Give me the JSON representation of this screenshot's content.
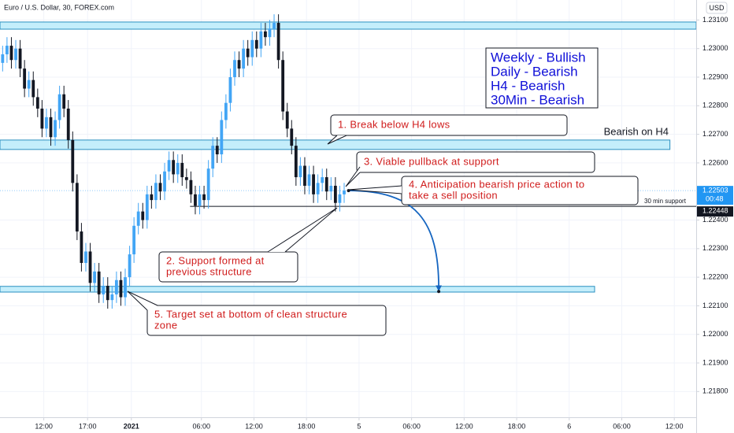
{
  "header": {
    "symbol": "Euro / U.S. Dollar, 30, FOREX.com",
    "currency": "USD"
  },
  "chart_data": {
    "type": "candlestick",
    "up_color": "#42a5f5",
    "down_color": "#131722",
    "zone_color": "#c4eefb",
    "zone_border": "#2a8fc0",
    "arrow_color": "#1565c0",
    "grid": true,
    "xlim": [
      7,
      86.5
    ],
    "xticks": [
      {
        "value": 12,
        "label": "12:00"
      },
      {
        "value": 17,
        "label": "17:00"
      },
      {
        "value": 22,
        "label": "2021"
      },
      {
        "value": 30,
        "label": "06:00"
      },
      {
        "value": 36,
        "label": "12:00"
      },
      {
        "value": 42,
        "label": "18:00"
      },
      {
        "value": 48,
        "label": "5"
      },
      {
        "value": 54,
        "label": "06:00"
      },
      {
        "value": 60,
        "label": "12:00"
      },
      {
        "value": 66,
        "label": "18:00"
      },
      {
        "value": 72,
        "label": "6"
      },
      {
        "value": 78,
        "label": "06:00"
      },
      {
        "value": 84,
        "label": "12:00"
      }
    ],
    "ylim": [
      1.2171,
      1.2317
    ],
    "yticks": [
      {
        "value": 1.231,
        "label": "1.23100"
      },
      {
        "value": 1.23,
        "label": "1.23000"
      },
      {
        "value": 1.229,
        "label": "1.22900"
      },
      {
        "value": 1.228,
        "label": "1.22800"
      },
      {
        "value": 1.227,
        "label": "1.22700"
      },
      {
        "value": 1.226,
        "label": "1.22600"
      },
      {
        "value": 1.224,
        "label": "1.22400"
      },
      {
        "value": 1.223,
        "label": "1.22300"
      },
      {
        "value": 1.222,
        "label": "1.22200"
      },
      {
        "value": 1.221,
        "label": "1.22100"
      },
      {
        "value": 1.22,
        "label": "1.22000"
      },
      {
        "value": 1.219,
        "label": "1.21900"
      },
      {
        "value": 1.218,
        "label": "1.21800"
      }
    ],
    "candles": {
      "x": [
        7.3,
        7.8,
        8.3,
        8.8,
        9.3,
        9.8,
        10.3,
        10.8,
        11.3,
        11.8,
        12.3,
        12.8,
        13.3,
        13.8,
        14.3,
        14.8,
        15.3,
        15.8,
        16.3,
        16.8,
        17.3,
        17.8,
        18.3,
        18.8,
        19.3,
        19.8,
        20.3,
        20.8,
        21.3,
        21.8,
        22.3,
        22.8,
        23.3,
        23.8,
        24.3,
        24.8,
        25.3,
        25.8,
        26.3,
        26.8,
        27.3,
        27.8,
        28.3,
        28.8,
        29.3,
        29.8,
        30.3,
        30.8,
        31.3,
        31.8,
        32.3,
        32.8,
        33.3,
        33.8,
        34.3,
        34.8,
        35.3,
        35.8,
        36.3,
        36.8,
        37.3,
        37.8,
        38.3,
        38.8,
        39.3,
        39.8,
        40.3,
        40.8,
        41.3,
        41.8,
        42.3,
        42.8,
        43.3,
        43.8,
        44.3,
        44.8,
        45.3,
        45.8,
        46.3
      ],
      "open": [
        1.2295,
        1.2298,
        1.2301,
        1.2296,
        1.23,
        1.2293,
        1.2286,
        1.2289,
        1.2283,
        1.2279,
        1.2272,
        1.2276,
        1.2269,
        1.2275,
        1.2284,
        1.2279,
        1.2268,
        1.2253,
        1.2236,
        1.2225,
        1.2229,
        1.2218,
        1.2222,
        1.2214,
        1.2217,
        1.2212,
        1.2214,
        1.2219,
        1.2213,
        1.222,
        1.2228,
        1.2238,
        1.2243,
        1.224,
        1.2249,
        1.2247,
        1.2253,
        1.225,
        1.2257,
        1.2261,
        1.2256,
        1.226,
        1.2255,
        1.2254,
        1.2249,
        1.2245,
        1.2249,
        1.2247,
        1.2258,
        1.2266,
        1.2263,
        1.2275,
        1.2281,
        1.229,
        1.2296,
        1.2293,
        1.23,
        1.2297,
        1.2303,
        1.23,
        1.2306,
        1.2304,
        1.2307,
        1.2309,
        1.2296,
        1.2278,
        1.2272,
        1.2266,
        1.2255,
        1.2259,
        1.2252,
        1.2256,
        1.2249,
        1.2253,
        1.2255,
        1.225,
        1.2252,
        1.2246,
        1.2249
      ],
      "high": [
        1.2301,
        1.2304,
        1.2304,
        1.2303,
        1.2303,
        1.2296,
        1.2292,
        1.2292,
        1.2286,
        1.2282,
        1.2279,
        1.2279,
        1.2278,
        1.2287,
        1.2287,
        1.2282,
        1.2271,
        1.2256,
        1.2239,
        1.2232,
        1.2232,
        1.2225,
        1.2225,
        1.222,
        1.222,
        1.2217,
        1.2222,
        1.2222,
        1.2223,
        1.2231,
        1.2241,
        1.2246,
        1.2246,
        1.2252,
        1.2252,
        1.2256,
        1.2256,
        1.226,
        1.2264,
        1.2264,
        1.2263,
        1.2263,
        1.2258,
        1.2257,
        1.2252,
        1.2252,
        1.2252,
        1.2261,
        1.2269,
        1.2269,
        1.2278,
        1.2284,
        1.2293,
        1.2299,
        1.2299,
        1.2303,
        1.2303,
        1.2306,
        1.2306,
        1.2309,
        1.2309,
        1.231,
        1.2312,
        1.2312,
        1.2299,
        1.2281,
        1.2275,
        1.2269,
        1.2262,
        1.2262,
        1.2259,
        1.2259,
        1.2256,
        1.2258,
        1.2258,
        1.2255,
        1.2255,
        1.2252,
        1.2253
      ],
      "low": [
        1.2292,
        1.2295,
        1.2293,
        1.2293,
        1.229,
        1.2283,
        1.2283,
        1.228,
        1.2276,
        1.2269,
        1.2269,
        1.2266,
        1.2266,
        1.2272,
        1.2276,
        1.2265,
        1.225,
        1.2233,
        1.2222,
        1.2222,
        1.2215,
        1.2215,
        1.2211,
        1.2211,
        1.2209,
        1.2209,
        1.2211,
        1.221,
        1.221,
        1.2217,
        1.2225,
        1.2235,
        1.2237,
        1.2237,
        1.2244,
        1.2244,
        1.2247,
        1.2247,
        1.2254,
        1.2253,
        1.2253,
        1.2252,
        1.2251,
        1.2246,
        1.2242,
        1.2242,
        1.2244,
        1.2244,
        1.2255,
        1.226,
        1.226,
        1.2272,
        1.2278,
        1.2287,
        1.229,
        1.229,
        1.2294,
        1.2294,
        1.2297,
        1.2297,
        1.2301,
        1.2301,
        1.2304,
        1.2293,
        1.2275,
        1.2269,
        1.2263,
        1.2252,
        1.2252,
        1.2249,
        1.2249,
        1.2246,
        1.2246,
        1.225,
        1.2247,
        1.2247,
        1.2243,
        1.2243,
        1.2246
      ],
      "close": [
        1.2298,
        1.2301,
        1.2296,
        1.23,
        1.2293,
        1.2286,
        1.2289,
        1.2283,
        1.2279,
        1.2272,
        1.2276,
        1.2269,
        1.2275,
        1.2284,
        1.2279,
        1.2268,
        1.2253,
        1.2236,
        1.2225,
        1.2229,
        1.2218,
        1.2222,
        1.2214,
        1.2217,
        1.2212,
        1.2214,
        1.2219,
        1.2213,
        1.222,
        1.2228,
        1.2238,
        1.2243,
        1.224,
        1.2249,
        1.2247,
        1.2253,
        1.225,
        1.2257,
        1.2261,
        1.2256,
        1.226,
        1.2255,
        1.2254,
        1.2249,
        1.2245,
        1.2249,
        1.2247,
        1.2258,
        1.2266,
        1.2263,
        1.2275,
        1.2281,
        1.229,
        1.2296,
        1.2293,
        1.23,
        1.2297,
        1.2303,
        1.23,
        1.2306,
        1.2304,
        1.2307,
        1.2309,
        1.2296,
        1.2278,
        1.2272,
        1.2266,
        1.2255,
        1.2259,
        1.2252,
        1.2256,
        1.2249,
        1.2253,
        1.2255,
        1.225,
        1.2252,
        1.2246,
        1.2249,
        1.22503
      ]
    },
    "zones": [
      {
        "top": 1.23093,
        "bottom": 1.23068,
        "x_end": 86.5
      },
      {
        "top": 1.2268,
        "bottom": 1.22647,
        "x_end": 83.5,
        "label": "Bearish on H4"
      },
      {
        "top": 1.22168,
        "bottom": 1.22148,
        "x_end": 74.9
      }
    ],
    "support": {
      "price": 1.22448,
      "start": 28.7,
      "label": "30 min support"
    },
    "last_price": 1.22503,
    "countdown": "00:48",
    "arrow": {
      "from": [
        46.8,
        1.22503
      ],
      "to": [
        57.1,
        1.2215
      ]
    },
    "bias": [
      "Weekly - Bullish",
      "Daily - Bearish",
      "H4 - Bearish",
      "30Min - Bearish"
    ],
    "callouts": [
      {
        "lines": [
          "1. Break below H4 lows"
        ]
      },
      {
        "lines": [
          "3. Viable pullback at support"
        ]
      },
      {
        "lines": [
          "4. Anticipation bearish price action to",
          "take a sell position"
        ]
      },
      {
        "lines": [
          "2. Support formed at",
          "previous structure"
        ]
      },
      {
        "lines": [
          "5. Target set at bottom of clean structure",
          "zone"
        ]
      }
    ]
  }
}
